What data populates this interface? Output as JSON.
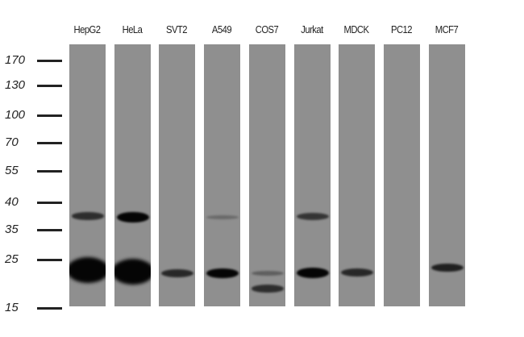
{
  "lanes": [
    {
      "label": "HepG2",
      "bands": [
        {
          "kda": 37.5,
          "intensity": 0.55
        },
        {
          "kda": 22.8,
          "intensity": 1.0
        }
      ]
    },
    {
      "label": "HeLa",
      "bands": [
        {
          "kda": 37.3,
          "intensity": 0.95
        },
        {
          "kda": 22.5,
          "intensity": 1.0
        }
      ]
    },
    {
      "label": "SVT2",
      "bands": [
        {
          "kda": 22.2,
          "intensity": 0.6
        }
      ]
    },
    {
      "label": "A549",
      "bands": [
        {
          "kda": 37.3,
          "intensity": 0.12
        },
        {
          "kda": 22.2,
          "intensity": 0.85
        }
      ]
    },
    {
      "label": "COS7",
      "bands": [
        {
          "kda": 22.2,
          "intensity": 0.2
        },
        {
          "kda": 19.0,
          "intensity": 0.55
        }
      ]
    },
    {
      "label": "Jurkat",
      "bands": [
        {
          "kda": 37.5,
          "intensity": 0.5
        },
        {
          "kda": 22.3,
          "intensity": 0.9
        }
      ]
    },
    {
      "label": "MDCK",
      "bands": [
        {
          "kda": 22.4,
          "intensity": 0.6
        }
      ]
    },
    {
      "label": "PC12",
      "bands": []
    },
    {
      "label": "MCF7",
      "bands": [
        {
          "kda": 23.3,
          "intensity": 0.65
        }
      ]
    }
  ],
  "markers": [
    "170",
    "130",
    "100",
    "70",
    "55",
    "40",
    "35",
    "25",
    "15"
  ],
  "colors": {
    "membrane": "#8f8f8f",
    "band": "#050505"
  }
}
